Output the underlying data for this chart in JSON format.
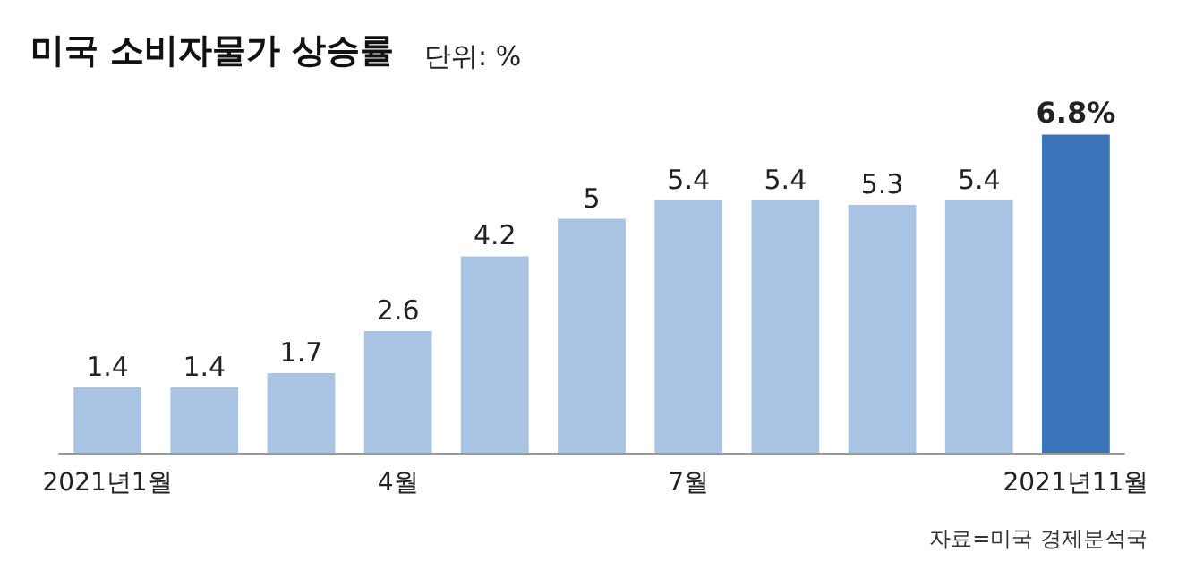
{
  "chart_data": {
    "type": "bar",
    "title": "미국 소비자물가 상승률",
    "subtitle": "단위: %",
    "categories": [
      "2021년1월",
      null,
      null,
      "4월",
      null,
      null,
      "7월",
      null,
      null,
      null,
      "2021년11월"
    ],
    "values": [
      1.4,
      1.4,
      1.7,
      2.6,
      4.2,
      5,
      5.4,
      5.4,
      5.3,
      5.4,
      6.8
    ],
    "colors": [
      "#a9c3e2",
      "#a9c3e2",
      "#a9c3e2",
      "#a9c3e2",
      "#a9c3e2",
      "#a9c3e2",
      "#a9c3e2",
      "#a9c3e2",
      "#a9c3e2",
      "#a9c3e2",
      "#3b74b8"
    ],
    "value_labels": [
      "1.4",
      "1.4",
      "1.7",
      "2.6",
      "4.2",
      "5",
      "5.4",
      "5.4",
      "5.3",
      "5.4",
      "6.8%"
    ],
    "annotations": [
      "자료=미국 경제분석국"
    ],
    "grid": false
  }
}
